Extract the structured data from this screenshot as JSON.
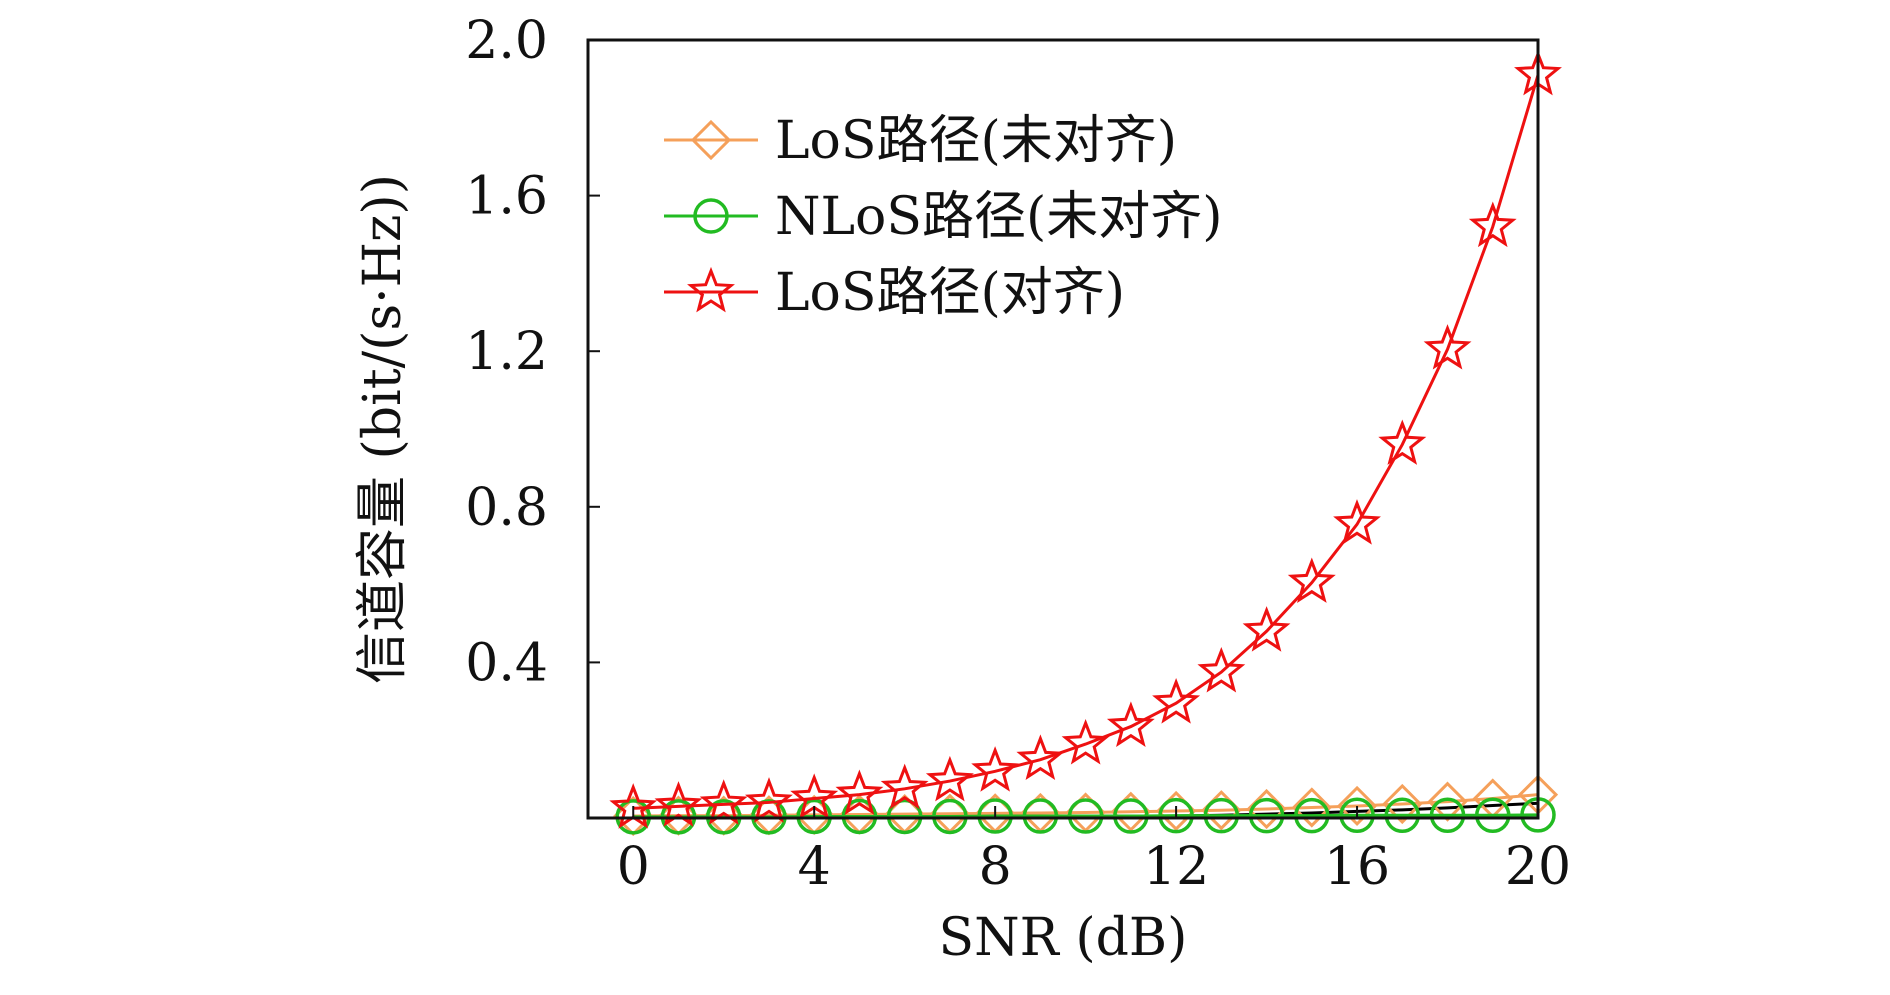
{
  "chart_data": {
    "type": "line",
    "xlabel": "SNR (dB)",
    "ylabel": "信道容量 (bit/(s·Hz))",
    "xlim": [
      -1,
      20
    ],
    "ylim": [
      0,
      2.0
    ],
    "x_ticks": [
      "0",
      "4",
      "8",
      "12",
      "16",
      "20"
    ],
    "y_ticks": [
      "0.4",
      "0.8",
      "1.2",
      "1.6",
      "2.0"
    ],
    "legend_position": "top-left",
    "grid": false,
    "x": [
      0,
      1,
      2,
      3,
      4,
      5,
      6,
      7,
      8,
      9,
      10,
      11,
      12,
      13,
      14,
      15,
      16,
      17,
      18,
      19,
      20
    ],
    "series": [
      {
        "name": "LoS路径(未对齐)",
        "color": "#f5a05a",
        "marker": "diamond",
        "values": [
          0.005,
          0.006,
          0.006,
          0.007,
          0.008,
          0.009,
          0.01,
          0.011,
          0.012,
          0.013,
          0.014,
          0.016,
          0.018,
          0.02,
          0.023,
          0.027,
          0.031,
          0.036,
          0.042,
          0.05,
          0.06
        ]
      },
      {
        "name": "NLoS路径(未对齐)",
        "color": "#22bb22",
        "marker": "circle",
        "values": [
          0.003,
          0.003,
          0.003,
          0.003,
          0.004,
          0.004,
          0.004,
          0.004,
          0.005,
          0.005,
          0.005,
          0.005,
          0.006,
          0.006,
          0.006,
          0.006,
          0.007,
          0.007,
          0.007,
          0.007,
          0.008
        ]
      },
      {
        "name": "LoS路径(对齐)",
        "color": "#ee1111",
        "marker": "star",
        "values": [
          0.025,
          0.03,
          0.035,
          0.04,
          0.05,
          0.06,
          0.075,
          0.095,
          0.12,
          0.15,
          0.19,
          0.235,
          0.295,
          0.375,
          0.48,
          0.605,
          0.755,
          0.96,
          1.205,
          1.52,
          1.91
        ]
      }
    ],
    "reference_line": {
      "color": "#000000",
      "values": [
        0.0,
        0.0,
        0.0,
        0.0,
        0.0,
        0.0,
        0.0,
        0.0,
        0.0,
        0.001,
        0.002,
        0.003,
        0.005,
        0.007,
        0.01,
        0.013,
        0.017,
        0.021,
        0.026,
        0.032,
        0.038
      ]
    }
  }
}
